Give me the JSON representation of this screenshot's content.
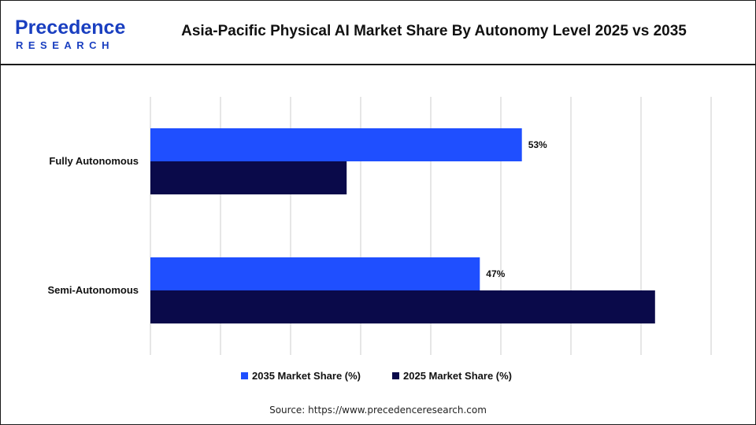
{
  "header": {
    "title": "Asia-Pacific Physical AI Market Share By Autonomy Level 2025 vs 2035",
    "logo": {
      "primary": "Precedence",
      "secondary": "RESEARCH"
    }
  },
  "source": "Source: https://www.precedenceresearch.com",
  "colors": {
    "series_2035": "#1f4fff",
    "series_2025": "#0a0a4a",
    "grid": "#cccccc",
    "logo_blue": "#1a3fc0"
  },
  "chart_data": {
    "type": "bar",
    "orientation": "horizontal",
    "categories": [
      "Fully Autonomous",
      "Semi-Autonomous"
    ],
    "series": [
      {
        "name": "2035 Market Share (%)",
        "values": [
          53,
          47
        ],
        "data_labels": [
          "53%",
          "47%"
        ],
        "color": "#1f4fff"
      },
      {
        "name": "2025 Market Share (%)",
        "values": [
          28,
          72
        ],
        "data_labels": [
          "",
          ""
        ],
        "color": "#0a0a4a"
      }
    ],
    "xlim": [
      0,
      80
    ],
    "grid": true,
    "legend_position": "bottom",
    "title": "Asia-Pacific Physical AI Market Share By Autonomy Level 2025 vs 2035"
  }
}
